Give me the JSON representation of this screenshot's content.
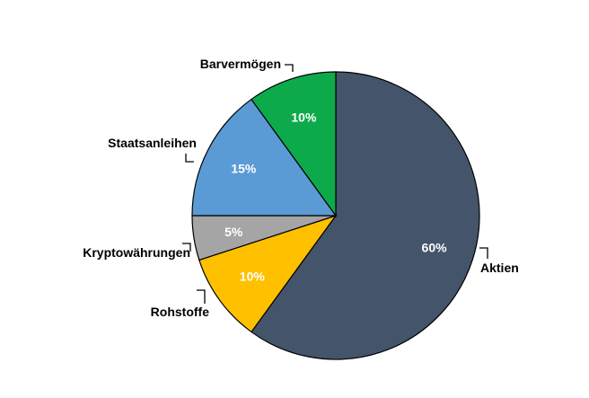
{
  "chart_data": {
    "type": "pie",
    "title": "",
    "start": "12 o'clock",
    "direction": "clockwise",
    "slices": [
      {
        "label": "Aktien",
        "value": 60,
        "value_label": "60%",
        "color": "#44546A"
      },
      {
        "label": "Rohstoffe",
        "value": 10,
        "value_label": "10%",
        "color": "#FFC000"
      },
      {
        "label": "Kryptowährungen",
        "value": 5,
        "value_label": "5%",
        "color": "#A5A5A5"
      },
      {
        "label": "Staatsanleihen",
        "value": 15,
        "value_label": "15%",
        "color": "#5B9BD5"
      },
      {
        "label": "Barvermögen",
        "value": 10,
        "value_label": "10%",
        "color": "#0DAA4B"
      }
    ],
    "legend": "none",
    "category_label_placement": "outside-with-leaders"
  }
}
